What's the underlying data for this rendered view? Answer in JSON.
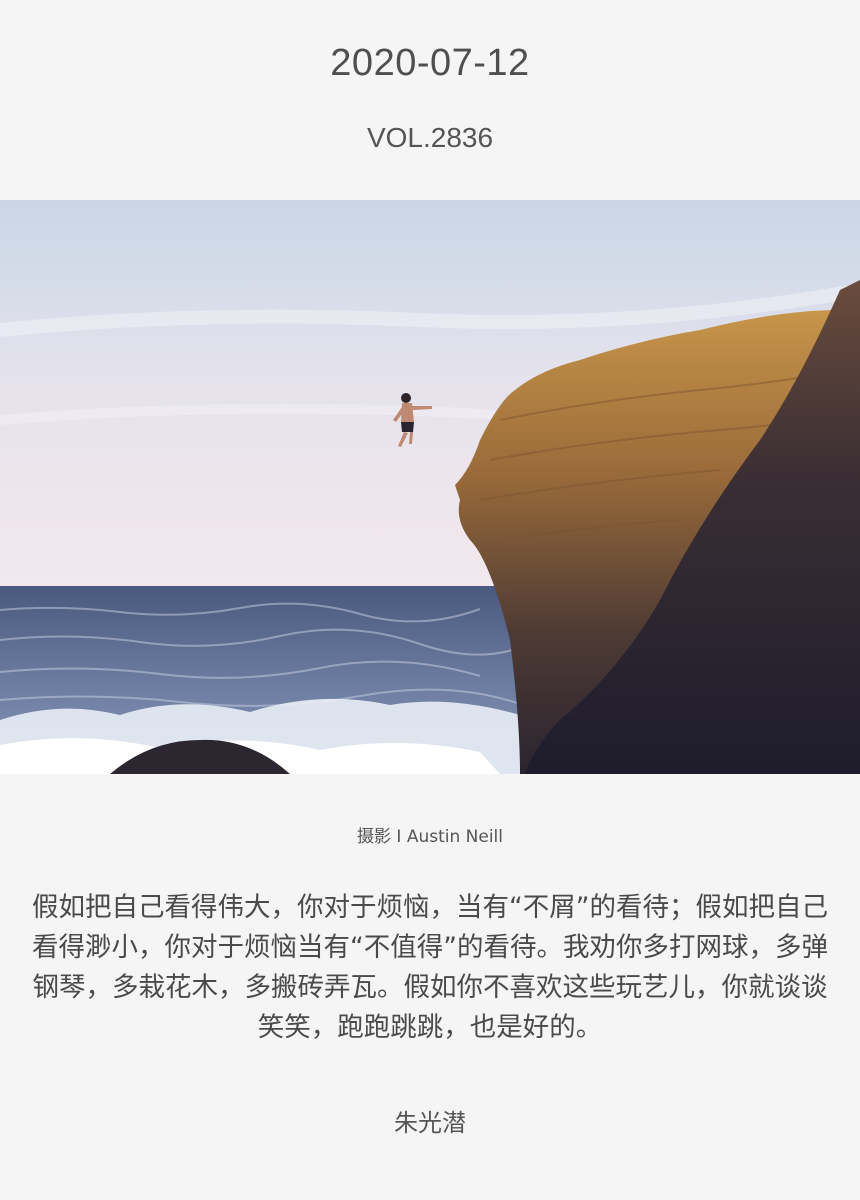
{
  "header": {
    "date": "2020-07-12",
    "volume": "VOL.2836"
  },
  "photo": {
    "credit": "摄影 I Austin Neill"
  },
  "quote": {
    "text": "假如把自己看得伟大，你对于烦恼，当有“不屑”的看待；假如把自己看得渺小，你对于烦恼当有“不值得”的看待。我劝你多打网球，多弹钢琴，多栽花木，多搬砖弄瓦。假如你不喜欢这些玩艺儿，你就谈谈笑笑，跑跑跳跳，也是好的。",
    "author": "朱光潜"
  }
}
